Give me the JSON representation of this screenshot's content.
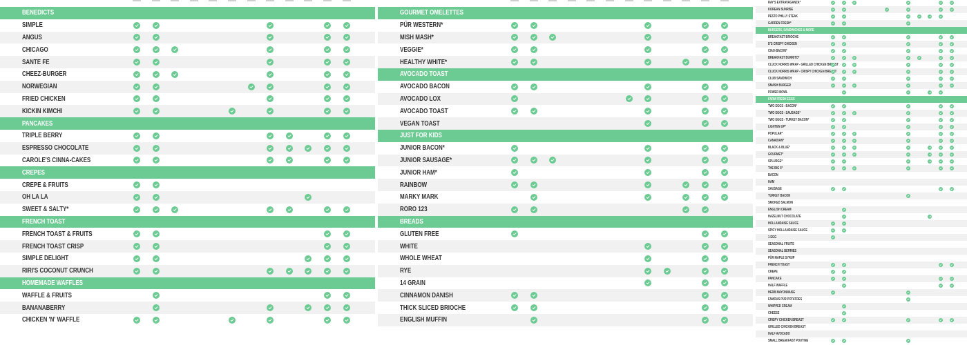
{
  "colors": {
    "accent": "#6ccb92",
    "row_alt": "#f1f1f1",
    "text": "#333333"
  },
  "icon": "check-circle-icon",
  "panels": [
    {
      "id": "left",
      "rows": [
        {
          "type": "header",
          "label": "BENEDICTS"
        },
        {
          "label": "SIMPLE",
          "checks": [
            0,
            1,
            7,
            10,
            11
          ]
        },
        {
          "label": "ANGUS",
          "checks": [
            0,
            1,
            7,
            10,
            11
          ]
        },
        {
          "label": "CHICAGO",
          "checks": [
            0,
            1,
            2,
            7,
            10,
            11
          ]
        },
        {
          "label": "SANTE FE",
          "checks": [
            0,
            1,
            7,
            10,
            11
          ]
        },
        {
          "label": "CHEEZ-BURGER",
          "checks": [
            0,
            1,
            2,
            7,
            10,
            11
          ]
        },
        {
          "label": "NORWEGIAN",
          "checks": [
            0,
            1,
            6,
            7,
            10,
            11
          ]
        },
        {
          "label": "FRIED CHICKEN",
          "checks": [
            0,
            1,
            7,
            10,
            11
          ]
        },
        {
          "label": "KICKIN KIMCHI",
          "checks": [
            0,
            1,
            5,
            7,
            10,
            11
          ]
        },
        {
          "type": "header",
          "label": "PANCAKES"
        },
        {
          "label": "TRIPLE BERRY",
          "checks": [
            0,
            1,
            7,
            8,
            10,
            11
          ]
        },
        {
          "label": "ESPRESSO CHOCOLATE",
          "checks": [
            0,
            1,
            7,
            8,
            9,
            10,
            11
          ]
        },
        {
          "label": "CAROLE'S CINNA-CAKES",
          "checks": [
            0,
            1,
            7,
            8,
            10,
            11
          ]
        },
        {
          "type": "header",
          "label": "CREPES"
        },
        {
          "label": "CREPE & FRUITS",
          "checks": [
            0,
            1
          ]
        },
        {
          "label": "OH LA LA",
          "checks": [
            0,
            1,
            9
          ]
        },
        {
          "label": "SWEET & SALTY*",
          "checks": [
            0,
            1,
            2,
            7,
            8,
            10,
            11
          ]
        },
        {
          "type": "header",
          "label": "FRENCH TOAST"
        },
        {
          "label": "FRENCH TOAST & FRUITS",
          "checks": [
            0,
            1,
            10,
            11
          ]
        },
        {
          "label": "FRENCH TOAST CRISP",
          "checks": [
            0,
            1,
            10,
            11
          ]
        },
        {
          "label": "SIMPLE DELIGHT",
          "checks": [
            0,
            1,
            9,
            10,
            11
          ]
        },
        {
          "label": "RIRI'S COCONUT CRUNCH",
          "checks": [
            0,
            1,
            7,
            8,
            9,
            10,
            11
          ]
        },
        {
          "type": "header",
          "label": "HOMEMADE WAFFLES"
        },
        {
          "label": "WAFFLE & FRUITS",
          "checks": [
            1,
            10,
            11
          ]
        },
        {
          "label": "BANANABERRY",
          "checks": [
            1,
            7,
            9,
            10,
            11
          ]
        },
        {
          "label": "CHICKEN 'N' WAFFLE",
          "checks": [
            0,
            1,
            5,
            7,
            10,
            11
          ]
        }
      ]
    },
    {
      "id": "middle",
      "rows": [
        {
          "type": "header",
          "label": "GOURMET OMELETTES"
        },
        {
          "label": "PÜR WESTERN*",
          "checks": [
            0,
            1,
            7,
            10,
            11
          ]
        },
        {
          "label": "MISH MASH*",
          "checks": [
            0,
            1,
            2,
            7,
            10,
            11
          ]
        },
        {
          "label": "VEGGIE*",
          "checks": [
            0,
            1,
            7,
            10,
            11
          ]
        },
        {
          "label": "HEALTHY WHITE*",
          "checks": [
            0,
            1,
            7,
            9,
            10,
            11
          ]
        },
        {
          "type": "header",
          "label": "AVOCADO TOAST"
        },
        {
          "label": "AVOCADO BACON",
          "checks": [
            0,
            1,
            7,
            10,
            11
          ]
        },
        {
          "label": "AVOCADO LOX",
          "checks": [
            0,
            6,
            7,
            10,
            11
          ]
        },
        {
          "label": "AVOCADO TOAST",
          "checks": [
            0,
            1,
            7,
            10,
            11
          ]
        },
        {
          "label": "VEGAN TOAST",
          "checks": [
            7,
            10,
            11
          ]
        },
        {
          "type": "header",
          "label": "JUST FOR KIDS"
        },
        {
          "label": "JUNIOR BACON*",
          "checks": [
            0,
            7,
            10,
            11
          ]
        },
        {
          "label": "JUNIOR SAUSAGE*",
          "checks": [
            0,
            1,
            2,
            7,
            10,
            11
          ]
        },
        {
          "label": "JUNIOR HAM*",
          "checks": [
            0,
            7,
            10,
            11
          ]
        },
        {
          "label": "RAINBOW",
          "checks": [
            0,
            1,
            7,
            9,
            10,
            11
          ]
        },
        {
          "label": "MARKY MARK",
          "checks": [
            1,
            7,
            9,
            10,
            11
          ]
        },
        {
          "label": "RORO 123",
          "checks": [
            0,
            1,
            9,
            10
          ]
        },
        {
          "type": "header",
          "label": "BREADS"
        },
        {
          "label": "GLUTEN FREE",
          "checks": [
            0,
            10,
            11
          ]
        },
        {
          "label": "WHITE",
          "checks": [
            7,
            10,
            11
          ]
        },
        {
          "label": "WHOLE WHEAT",
          "checks": [
            7,
            10,
            11
          ]
        },
        {
          "label": "RYE",
          "checks": [
            7,
            8,
            10,
            11
          ]
        },
        {
          "label": "14 GRAIN",
          "checks": [
            7,
            10,
            11
          ]
        },
        {
          "label": "CINNAMON DANISH",
          "checks": [
            0,
            1,
            10,
            11
          ]
        },
        {
          "label": "THICK SLICED BRIOCHE",
          "checks": [
            0,
            1,
            10,
            11
          ]
        },
        {
          "label": "ENGLISH MUFFIN",
          "checks": [
            1,
            10,
            11
          ]
        }
      ]
    },
    {
      "id": "right",
      "rows": [
        {
          "label": "RAY'S EXTRAVAGANZA*",
          "checks": [
            0,
            1,
            2,
            7,
            10,
            11
          ]
        },
        {
          "label": "KOREAN SUNRISE",
          "checks": [
            0,
            1,
            5,
            7,
            10,
            11
          ]
        },
        {
          "label": "PESTO PHILLY STEAK",
          "checks": [
            0,
            1,
            7,
            8,
            9,
            10
          ]
        },
        {
          "label": "GARDEN FRESH*",
          "checks": [
            0,
            1,
            7
          ]
        },
        {
          "type": "header",
          "label": "BURGERS, SANDWICHES & MORE"
        },
        {
          "label": "BREAKFAST BRIOCHE",
          "checks": [
            0,
            1,
            7,
            10,
            11
          ]
        },
        {
          "label": "D'S CRISPY CHICKEN",
          "checks": [
            0,
            1,
            7,
            10,
            11
          ]
        },
        {
          "label": "CIAO-BACON*",
          "checks": [
            0,
            1,
            7,
            10,
            11
          ]
        },
        {
          "label": "BREAKFAST BURRITO*",
          "checks": [
            0,
            1,
            2,
            7,
            8,
            10,
            11
          ]
        },
        {
          "label": "CLUCK NORRIS WRAP - GRILLED CHICKEN BREAST",
          "checks": [
            0,
            1,
            2,
            7,
            10,
            11
          ]
        },
        {
          "label": "CLUCK NORRIS WRAP - CRISPY CHICKEN BREAST",
          "checks": [
            0,
            1,
            2,
            7,
            10,
            11
          ]
        },
        {
          "label": "CLUB SANDWICH",
          "checks": [
            0,
            1,
            7,
            10,
            11
          ]
        },
        {
          "label": "SMASH BURGER",
          "checks": [
            0,
            1,
            2,
            7,
            10,
            11
          ]
        },
        {
          "label": "POWER BOWL",
          "checks": [
            1,
            7,
            9,
            10
          ]
        },
        {
          "type": "header",
          "label": "FARM FRESH EGGS"
        },
        {
          "label": "TWO EGGS - BACON*",
          "checks": [
            0,
            1,
            7,
            10,
            11
          ]
        },
        {
          "label": "TWO EGGS - SAUSAGE*",
          "checks": [
            0,
            1,
            2,
            7,
            10,
            11
          ]
        },
        {
          "label": "TWO EGGS - TURKEY BACON*",
          "checks": [
            0,
            1,
            7,
            10,
            11
          ]
        },
        {
          "label": "LIGHTEN UP*",
          "checks": [
            0,
            1,
            7,
            10,
            11
          ]
        },
        {
          "label": "POPULAR*",
          "checks": [
            0,
            1,
            2,
            7,
            10,
            11
          ]
        },
        {
          "label": "CANADIAN*",
          "checks": [
            0,
            1,
            2,
            7,
            10,
            11
          ]
        },
        {
          "label": "BLACK & BLUE*",
          "checks": [
            0,
            1,
            2,
            7,
            9,
            10,
            11
          ]
        },
        {
          "label": "GOURMET*",
          "checks": [
            0,
            1,
            2,
            7,
            9,
            10,
            11
          ]
        },
        {
          "label": "SPLURGE*",
          "checks": [
            0,
            1,
            7,
            9,
            10,
            11
          ]
        },
        {
          "label": "THE BIG 5*",
          "checks": [
            0,
            1,
            2,
            7,
            10,
            11
          ]
        },
        {
          "label": "BACON",
          "checks": []
        },
        {
          "label": "HAM",
          "checks": []
        },
        {
          "label": "SAUSAGE",
          "checks": [
            0,
            1,
            10,
            11
          ]
        },
        {
          "label": "TURKEY BACON",
          "checks": [
            7
          ]
        },
        {
          "label": "SMOKED SALMON",
          "checks": []
        },
        {
          "label": "ENGLISH CREAM",
          "checks": [
            1
          ]
        },
        {
          "label": "HAZELNUT CHOCOLATE",
          "checks": [
            1,
            9
          ]
        },
        {
          "label": "HOLLANDAISE SAUCE",
          "checks": [
            0,
            1
          ]
        },
        {
          "label": "SPICY HOLLANDAISE SAUCE",
          "checks": [
            0,
            1
          ]
        },
        {
          "label": "1 EGG",
          "checks": [
            0
          ]
        },
        {
          "label": "SEASONAL FRUITS",
          "checks": []
        },
        {
          "label": "SEASONAL BERRIES",
          "checks": []
        },
        {
          "label": "PÜR MAPLE SYRUP",
          "checks": []
        },
        {
          "label": "FRENCH TOAST",
          "checks": [
            0,
            1,
            10,
            11
          ]
        },
        {
          "label": "CREPE",
          "checks": [
            0,
            1
          ]
        },
        {
          "label": "PANCAKE",
          "checks": [
            0,
            1,
            10,
            11
          ]
        },
        {
          "label": "HALF WAFFLE",
          "checks": [
            1,
            10,
            11
          ]
        },
        {
          "label": "HERB MAYONNAISE",
          "checks": [
            0,
            7
          ]
        },
        {
          "label": "FAMOUS PÜR POTATOES",
          "checks": [
            7
          ]
        },
        {
          "label": "WHIPPED CREAM",
          "checks": [
            1
          ]
        },
        {
          "label": "CHEESE",
          "checks": [
            1
          ]
        },
        {
          "label": "CRISPY CHICKEN BREAST",
          "checks": [
            0,
            1,
            7,
            10,
            11
          ]
        },
        {
          "label": "GRILLED CHICKEN BREAST",
          "checks": []
        },
        {
          "label": "HALF AVOCADO",
          "checks": []
        },
        {
          "label": "SMALL BREAKFAST POUTINE",
          "checks": [
            0,
            1,
            7
          ]
        }
      ]
    }
  ]
}
